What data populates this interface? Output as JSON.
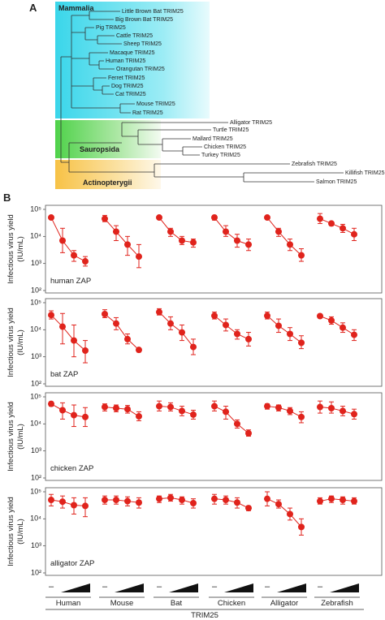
{
  "panel_a": {
    "label": "A",
    "clades": [
      "Mammalia",
      "Sauropsida",
      "Actinopterygii"
    ],
    "leaves": [
      "Little Brown Bat TRIM25",
      "Big Brown Bat TRIM25",
      "Pig TRIM25",
      "Cattle TRIM25",
      "Sheep TRIM25",
      "Macaque TRIM25",
      "Human TRIM25",
      "Orangutan TRIM25",
      "Ferret TRIM25",
      "Dog TRIM25",
      "Cat TRIM25",
      "Mouse TRIM25",
      "Rat TRIM25",
      "Alligator TRIM25",
      "Turtle TRIM25",
      "Mallard TRIM25",
      "Chicken TRIM25",
      "Turkey TRIM25",
      "Zebrafish TRIM25",
      "Killifish TRIM25",
      "Salmon TRIM25"
    ]
  },
  "chart_data": {
    "type": "dot",
    "label": "B",
    "log_scale": true,
    "color": "#e0231c",
    "ylabel": [
      "Infectious virus yield",
      "(IU/mL)"
    ],
    "ylim": [
      100,
      100000
    ],
    "yticks": [
      {
        "value": 100,
        "label": "10²"
      },
      {
        "value": 1000,
        "label": "10³"
      },
      {
        "value": 10000,
        "label": "10⁴"
      },
      {
        "value": 100000,
        "label": "10⁵"
      }
    ],
    "categories": [
      "Human",
      "Mouse",
      "Bat",
      "Chicken",
      "Alligator",
      "Zebrafish"
    ],
    "control_label": "–",
    "xlabel": "TRIM25",
    "panels": [
      {
        "label": "human ZAP",
        "groups": [
          {
            "values": [
              50000,
              7000,
              2000,
              1200
            ],
            "lower": [
              45000,
              2500,
              1200,
              800
            ],
            "upper": [
              55000,
              20000,
              3000,
              1800
            ]
          },
          {
            "values": [
              45000,
              15000,
              5000,
              1800
            ],
            "lower": [
              35000,
              7000,
              2000,
              700
            ],
            "upper": [
              60000,
              25000,
              10000,
              5000
            ]
          },
          {
            "values": [
              50000,
              15000,
              7000,
              6000
            ],
            "lower": [
              45000,
              10000,
              5000,
              4000
            ],
            "upper": [
              55000,
              20000,
              10000,
              8000
            ]
          },
          {
            "values": [
              50000,
              15000,
              7000,
              5000
            ],
            "lower": [
              40000,
              10000,
              4000,
              3000
            ],
            "upper": [
              60000,
              25000,
              12000,
              8000
            ]
          },
          {
            "values": [
              50000,
              15000,
              5000,
              2000
            ],
            "lower": [
              45000,
              10000,
              3000,
              1200
            ],
            "upper": [
              55000,
              20000,
              8000,
              3500
            ]
          },
          {
            "values": [
              45000,
              30000,
              20000,
              12000
            ],
            "lower": [
              30000,
              25000,
              14000,
              7000
            ],
            "upper": [
              70000,
              35000,
              28000,
              20000
            ]
          }
        ]
      },
      {
        "label": "bat ZAP",
        "groups": [
          {
            "values": [
              35000,
              13000,
              4000,
              1700
            ],
            "lower": [
              25000,
              3000,
              1000,
              600
            ],
            "upper": [
              50000,
              40000,
              15000,
              4000
            ]
          },
          {
            "values": [
              38000,
              17000,
              4500,
              1800
            ],
            "lower": [
              28000,
              10000,
              3000,
              1500
            ],
            "upper": [
              55000,
              28000,
              7000,
              2000
            ]
          },
          {
            "values": [
              45000,
              17000,
              8000,
              2300
            ],
            "lower": [
              35000,
              10000,
              4000,
              1200
            ],
            "upper": [
              60000,
              30000,
              15000,
              4500
            ]
          },
          {
            "values": [
              33000,
              15000,
              7000,
              4500
            ],
            "lower": [
              25000,
              9000,
              4500,
              2500
            ],
            "upper": [
              45000,
              25000,
              10000,
              8000
            ]
          },
          {
            "values": [
              33000,
              14000,
              7000,
              3300
            ],
            "lower": [
              25000,
              8000,
              4000,
              2000
            ],
            "upper": [
              45000,
              25000,
              12000,
              6000
            ]
          },
          {
            "values": [
              32000,
              22000,
              12000,
              6500
            ],
            "lower": [
              28000,
              16000,
              8000,
              4000
            ],
            "upper": [
              36000,
              30000,
              18000,
              10000
            ]
          }
        ]
      },
      {
        "label": "chicken ZAP",
        "groups": [
          {
            "values": [
              55000,
              32000,
              21000,
              18000
            ],
            "lower": [
              45000,
              15000,
              8000,
              8000
            ],
            "upper": [
              65000,
              60000,
              50000,
              40000
            ]
          },
          {
            "values": [
              42000,
              38000,
              35000,
              19000
            ],
            "lower": [
              30000,
              28000,
              25000,
              13000
            ],
            "upper": [
              55000,
              50000,
              48000,
              28000
            ]
          },
          {
            "values": [
              45000,
              42000,
              30000,
              22000
            ],
            "lower": [
              30000,
              30000,
              20000,
              15000
            ],
            "upper": [
              70000,
              60000,
              45000,
              32000
            ]
          },
          {
            "values": [
              45000,
              28000,
              10000,
              4500
            ],
            "lower": [
              30000,
              15000,
              7000,
              3500
            ],
            "upper": [
              70000,
              45000,
              14000,
              6000
            ]
          },
          {
            "values": [
              45000,
              40000,
              30000,
              18000
            ],
            "lower": [
              35000,
              30000,
              22000,
              11000
            ],
            "upper": [
              55000,
              50000,
              40000,
              28000
            ]
          },
          {
            "values": [
              42000,
              38000,
              30000,
              23000
            ],
            "lower": [
              25000,
              25000,
              20000,
              15000
            ],
            "upper": [
              70000,
              65000,
              45000,
              35000
            ]
          }
        ]
      },
      {
        "label": "alligator ZAP",
        "groups": [
          {
            "values": [
              50000,
              43000,
              32000,
              30000
            ],
            "lower": [
              30000,
              25000,
              15000,
              12000
            ],
            "upper": [
              80000,
              70000,
              60000,
              60000
            ]
          },
          {
            "values": [
              50000,
              50000,
              45000,
              40000
            ],
            "lower": [
              35000,
              35000,
              30000,
              25000
            ],
            "upper": [
              70000,
              70000,
              65000,
              60000
            ]
          },
          {
            "values": [
              55000,
              60000,
              50000,
              38000
            ],
            "lower": [
              40000,
              45000,
              35000,
              25000
            ],
            "upper": [
              70000,
              80000,
              65000,
              55000
            ]
          },
          {
            "values": [
              55000,
              50000,
              40000,
              25000
            ],
            "lower": [
              35000,
              35000,
              25000,
              20000
            ],
            "upper": [
              80000,
              70000,
              60000,
              30000
            ]
          },
          {
            "values": [
              55000,
              35000,
              15000,
              5000
            ],
            "lower": [
              30000,
              25000,
              9000,
              2500
            ],
            "upper": [
              100000,
              50000,
              25000,
              10000
            ]
          },
          {
            "values": [
              45000,
              55000,
              50000,
              45000
            ],
            "lower": [
              35000,
              40000,
              35000,
              35000
            ],
            "upper": [
              60000,
              70000,
              65000,
              60000
            ]
          }
        ]
      }
    ]
  }
}
